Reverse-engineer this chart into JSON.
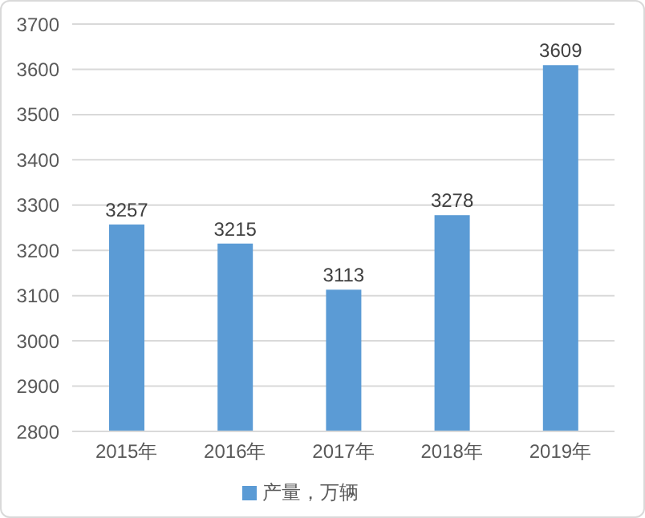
{
  "chart_data": {
    "type": "bar",
    "categories": [
      "2015年",
      "2016年",
      "2017年",
      "2018年",
      "2019年"
    ],
    "series": [
      {
        "name": "产量，万辆",
        "color": "#5b9bd5",
        "values": [
          3257,
          3215,
          3113,
          3278,
          3609
        ]
      }
    ],
    "ylim": [
      2800,
      3700
    ],
    "yticks": [
      2800,
      2900,
      3000,
      3100,
      3200,
      3300,
      3400,
      3500,
      3600,
      3700
    ],
    "grid": "y",
    "legend": "bottom",
    "data_labels": true
  }
}
